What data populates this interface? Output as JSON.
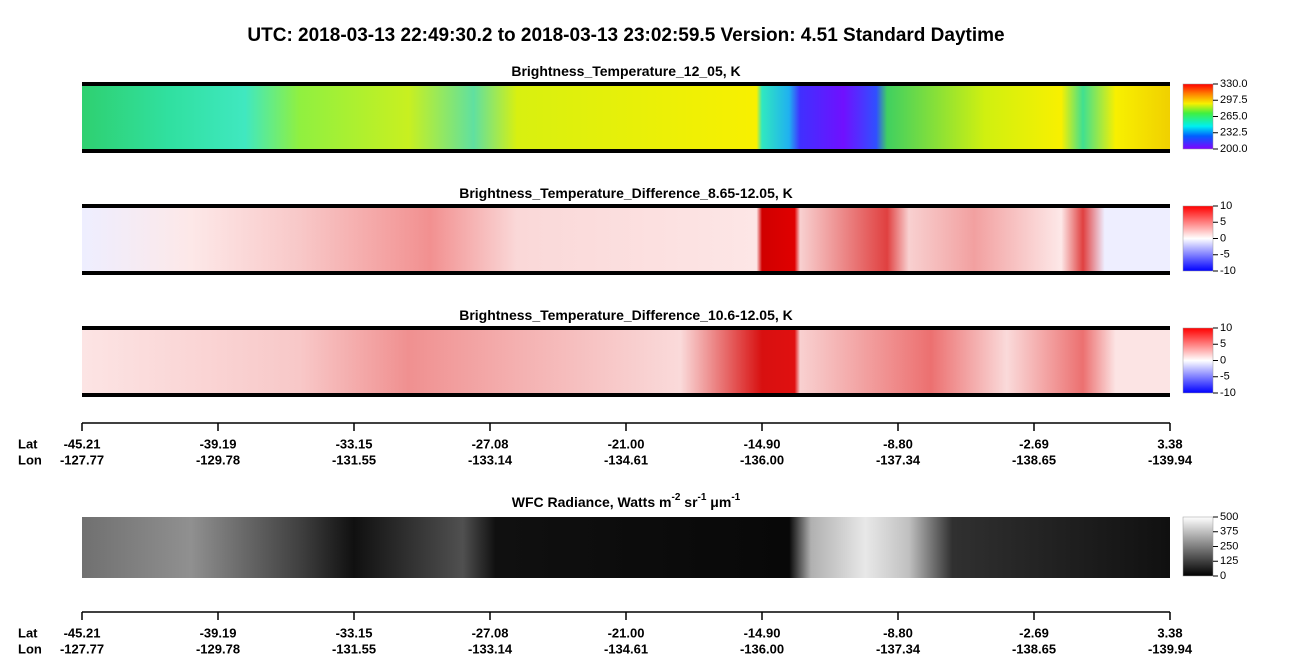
{
  "title": "UTC:  2018-03-13   22:49:30.2  to  2018-03-13   23:02:59.5    Version: 4.51  Standard Daytime",
  "panels": [
    {
      "title": [
        "Brightness_Temperature_12_05, K"
      ],
      "colorbar": [
        "330.0",
        "297.5",
        "265.0",
        "232.5",
        "200.0"
      ]
    },
    {
      "title": [
        "Brightness_Temperature_Difference_8.65-12.05, K"
      ],
      "colorbar": [
        "10",
        "5",
        "0",
        "-5",
        "-10"
      ]
    },
    {
      "title": [
        "Brightness_Temperature_Difference_10.6-12.05, K"
      ],
      "colorbar": [
        "10",
        "5",
        "0",
        "-5",
        "-10"
      ]
    },
    {
      "title": [
        "WFC Radiance, Watts m",
        "-2",
        " sr",
        "-1",
        " μm",
        "-1"
      ],
      "colorbar": [
        "500",
        "375",
        "250",
        "125",
        "0"
      ]
    }
  ],
  "axes": [
    {
      "lat_label": "Lat",
      "lon_label": "Lon",
      "lat": [
        "-45.21",
        "-39.19",
        "-33.15",
        "-27.08",
        "-21.00",
        "-14.90",
        "-8.80",
        "-2.69",
        "3.38"
      ],
      "lon": [
        "-127.77",
        "-129.78",
        "-131.55",
        "-133.14",
        "-134.61",
        "-136.00",
        "-137.34",
        "-138.65",
        "-139.94"
      ]
    },
    {
      "lat_label": "Lat",
      "lon_label": "Lon",
      "lat": [
        "-45.21",
        "-39.19",
        "-33.15",
        "-27.08",
        "-21.00",
        "-14.90",
        "-8.80",
        "-2.69",
        "3.38"
      ],
      "lon": [
        "-127.77",
        "-129.78",
        "-131.55",
        "-133.14",
        "-134.61",
        "-136.00",
        "-137.34",
        "-138.65",
        "-139.94"
      ]
    }
  ]
}
